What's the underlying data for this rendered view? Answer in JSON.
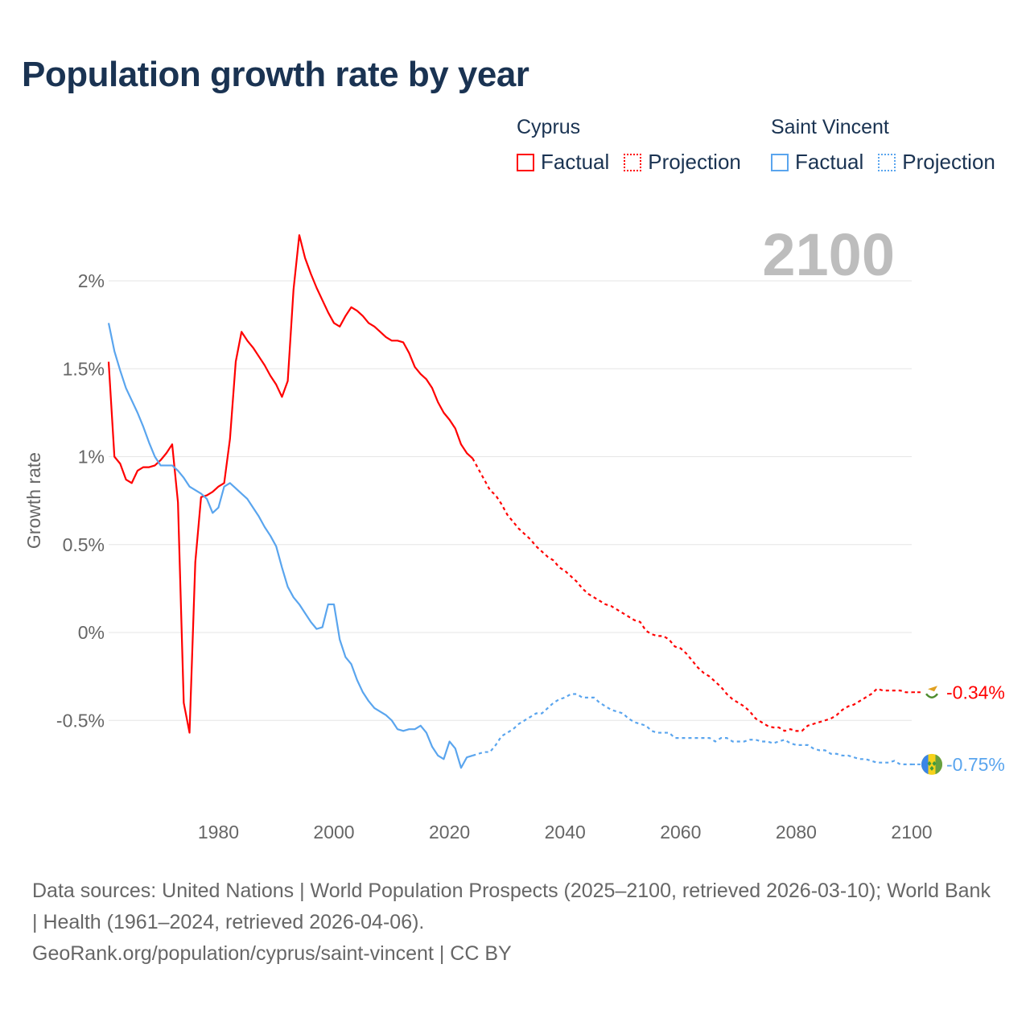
{
  "title": "Population growth rate by year",
  "legend": {
    "groups": [
      {
        "name": "Cyprus",
        "factual": "Factual",
        "projection": "Projection",
        "color": "#ff0000"
      },
      {
        "name": "Saint Vincent",
        "factual": "Factual",
        "projection": "Projection",
        "color": "#5aa5ee"
      }
    ]
  },
  "year_label": "2100",
  "footer": {
    "sources": "Data sources: United Nations | World Population Prospects (2025–2100, retrieved 2026-03-10); World Bank | Health (1961–2024, retrieved 2026-04-06).",
    "link": "GeoRank.org/population/cyprus/saint-vincent | CC BY"
  },
  "chart_data": {
    "type": "line",
    "title": "Population growth rate by year",
    "ylabel": "Growth rate",
    "xlabel": "",
    "xlim": [
      1961,
      2100
    ],
    "ylim": [
      -0.9,
      2.3
    ],
    "x_ticks": [
      1980,
      2000,
      2020,
      2040,
      2060,
      2080,
      2100
    ],
    "y_ticks": [
      {
        "value": 2,
        "label": "2%"
      },
      {
        "value": 1.5,
        "label": "1.5%"
      },
      {
        "value": 1,
        "label": "1%"
      },
      {
        "value": 0.5,
        "label": "0.5%"
      },
      {
        "value": 0,
        "label": "0%"
      },
      {
        "value": -0.5,
        "label": "-0.5%"
      }
    ],
    "grid": true,
    "series": [
      {
        "name": "Cyprus",
        "color": "#ff0000",
        "end_label": "-0.34%",
        "flag": "cyprus-flag",
        "factual_start": 1961,
        "factual": [
          1.54,
          1.0,
          0.96,
          0.87,
          0.85,
          0.92,
          0.94,
          0.94,
          0.95,
          0.98,
          1.02,
          1.07,
          0.74,
          -0.4,
          -0.57,
          0.4,
          0.77,
          0.78,
          0.8,
          0.83,
          0.85,
          1.1,
          1.54,
          1.71,
          1.66,
          1.62,
          1.57,
          1.52,
          1.46,
          1.41,
          1.34,
          1.43,
          1.95,
          2.26,
          2.13,
          2.04,
          1.96,
          1.89,
          1.82,
          1.76,
          1.74,
          1.8,
          1.85,
          1.83,
          1.8,
          1.76,
          1.74,
          1.71,
          1.68,
          1.66,
          1.66,
          1.65,
          1.59,
          1.51,
          1.47,
          1.44,
          1.39,
          1.31,
          1.25,
          1.21,
          1.16,
          1.07,
          1.02,
          0.99
        ],
        "projection_start": 2025,
        "projection": [
          0.93,
          0.87,
          0.81,
          0.78,
          0.73,
          0.67,
          0.63,
          0.59,
          0.56,
          0.53,
          0.49,
          0.46,
          0.43,
          0.41,
          0.37,
          0.35,
          0.32,
          0.29,
          0.25,
          0.22,
          0.2,
          0.18,
          0.16,
          0.15,
          0.13,
          0.11,
          0.09,
          0.07,
          0.06,
          0.01,
          -0.01,
          -0.02,
          -0.02,
          -0.04,
          -0.08,
          -0.09,
          -0.12,
          -0.16,
          -0.2,
          -0.23,
          -0.25,
          -0.28,
          -0.31,
          -0.35,
          -0.38,
          -0.4,
          -0.42,
          -0.45,
          -0.49,
          -0.51,
          -0.53,
          -0.54,
          -0.54,
          -0.56,
          -0.55,
          -0.56,
          -0.56,
          -0.53,
          -0.52,
          -0.51,
          -0.5,
          -0.49,
          -0.47,
          -0.44,
          -0.42,
          -0.41,
          -0.39,
          -0.37,
          -0.35,
          -0.32,
          -0.33,
          -0.33,
          -0.33,
          -0.33,
          -0.34,
          -0.34
        ]
      },
      {
        "name": "Saint Vincent",
        "color": "#5aa5ee",
        "end_label": "-0.75%",
        "flag": "saint-vincent-flag",
        "factual_start": 1961,
        "factual": [
          1.76,
          1.6,
          1.49,
          1.39,
          1.32,
          1.25,
          1.17,
          1.08,
          1.0,
          0.95,
          0.95,
          0.95,
          0.92,
          0.88,
          0.83,
          0.81,
          0.79,
          0.76,
          0.68,
          0.71,
          0.83,
          0.85,
          0.82,
          0.79,
          0.76,
          0.71,
          0.66,
          0.6,
          0.55,
          0.49,
          0.37,
          0.26,
          0.2,
          0.16,
          0.11,
          0.06,
          0.02,
          0.03,
          0.16,
          0.16,
          -0.04,
          -0.14,
          -0.18,
          -0.27,
          -0.34,
          -0.39,
          -0.43,
          -0.45,
          -0.47,
          -0.5,
          -0.55,
          -0.56,
          -0.55,
          -0.55,
          -0.53,
          -0.57,
          -0.65,
          -0.7,
          -0.72,
          -0.62,
          -0.66,
          -0.77,
          -0.71,
          -0.7
        ],
        "projection_start": 2025,
        "projection": [
          -0.69,
          -0.68,
          -0.68,
          -0.64,
          -0.59,
          -0.57,
          -0.55,
          -0.52,
          -0.5,
          -0.48,
          -0.46,
          -0.46,
          -0.43,
          -0.4,
          -0.38,
          -0.37,
          -0.35,
          -0.35,
          -0.37,
          -0.37,
          -0.37,
          -0.4,
          -0.42,
          -0.44,
          -0.45,
          -0.46,
          -0.49,
          -0.51,
          -0.52,
          -0.53,
          -0.56,
          -0.57,
          -0.57,
          -0.57,
          -0.6,
          -0.6,
          -0.6,
          -0.6,
          -0.6,
          -0.6,
          -0.6,
          -0.62,
          -0.6,
          -0.6,
          -0.62,
          -0.62,
          -0.62,
          -0.61,
          -0.61,
          -0.62,
          -0.62,
          -0.63,
          -0.62,
          -0.61,
          -0.63,
          -0.64,
          -0.64,
          -0.64,
          -0.66,
          -0.67,
          -0.67,
          -0.69,
          -0.69,
          -0.7,
          -0.7,
          -0.71,
          -0.72,
          -0.72,
          -0.73,
          -0.74,
          -0.74,
          -0.74,
          -0.73,
          -0.75,
          -0.75,
          -0.75
        ]
      }
    ]
  }
}
